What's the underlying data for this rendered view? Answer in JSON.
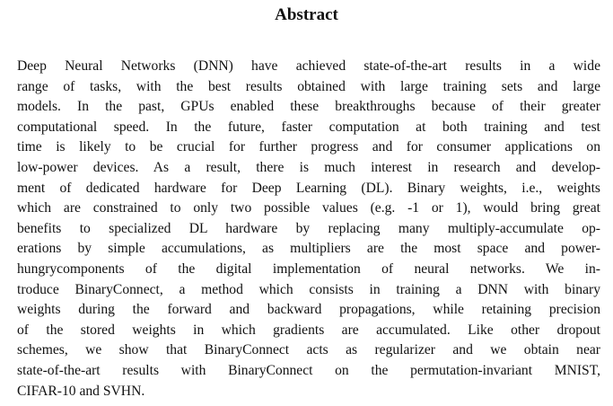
{
  "abstract": {
    "title": "Abstract",
    "lines": [
      "Deep Neural Networks (DNN) have achieved state-of-the-art results in a wide",
      "range of tasks, with the best results obtained with large training sets and large",
      "models. In the past, GPUs enabled these breakthroughs because of their greater",
      "computational speed. In the future, faster computation at both training and test",
      "time is likely to be crucial for further progress and for consumer applications on",
      "low-power devices. As a result, there is much interest in research and develop-",
      "ment of dedicated hardware for Deep Learning (DL). Binary weights, i.e., weights",
      "which are constrained to only two possible values (e.g. -1 or 1), would bring great",
      "benefits to specialized DL hardware by replacing many multiply-accumulate op-",
      "erations by simple accumulations, as multipliers are the most space and power-",
      "hungrycomponents of the digital implementation of neural networks. We in-",
      "troduce BinaryConnect, a method which consists in training a DNN with binary",
      "weights during the forward and backward propagations, while retaining precision",
      "of the stored weights in which gradients are accumulated. Like other dropout",
      "schemes, we show that BinaryConnect acts as regularizer and we obtain near",
      "state-of-the-art results with BinaryConnect on the permutation-invariant MNIST,",
      "CIFAR-10 and SVHN."
    ]
  }
}
